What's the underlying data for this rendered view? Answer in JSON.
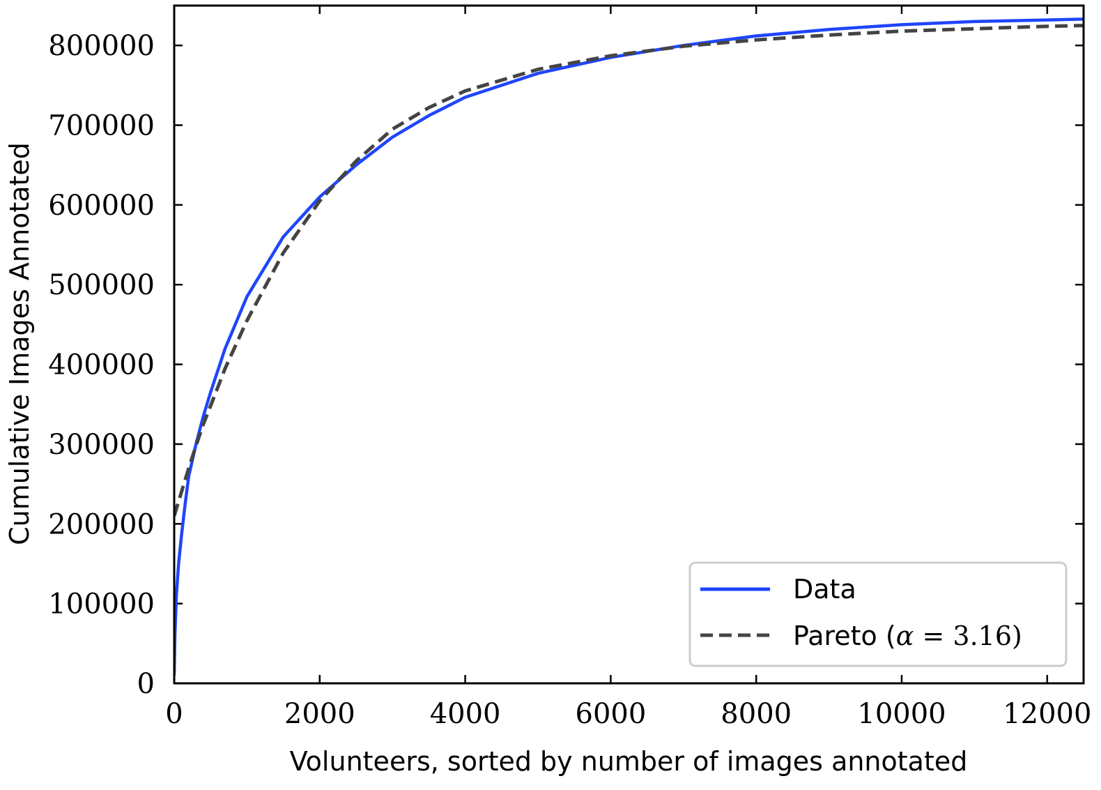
{
  "chart_data": {
    "type": "line",
    "title": "",
    "xlabel": "Volunteers, sorted by number of images annotated",
    "ylabel": "Cumulative Images Annotated",
    "xlim": [
      0,
      12500
    ],
    "ylim": [
      0,
      850000
    ],
    "x_ticks": [
      0,
      2000,
      4000,
      6000,
      8000,
      10000,
      12000
    ],
    "x_tick_labels": [
      "0",
      "2000",
      "4000",
      "6000",
      "8000",
      "10000",
      "12000"
    ],
    "y_ticks": [
      0,
      100000,
      200000,
      300000,
      400000,
      500000,
      600000,
      700000,
      800000
    ],
    "y_tick_labels": [
      "0",
      "100000",
      "200000",
      "300000",
      "400000",
      "500000",
      "600000",
      "700000",
      "800000"
    ],
    "grid": false,
    "legend_position": "bottom-right",
    "series": [
      {
        "name": "Data",
        "color": "#1f45fc",
        "style": "solid",
        "x": [
          0,
          10,
          30,
          60,
          100,
          150,
          200,
          300,
          400,
          500,
          700,
          1000,
          1500,
          2000,
          2500,
          3000,
          3500,
          4000,
          5000,
          6000,
          7000,
          8000,
          9000,
          10000,
          11000,
          12000,
          12500
        ],
        "y": [
          10000,
          60000,
          110000,
          150000,
          185000,
          225000,
          260000,
          300000,
          335000,
          365000,
          420000,
          485000,
          560000,
          610000,
          650000,
          685000,
          712000,
          735000,
          765000,
          785000,
          800000,
          812000,
          820000,
          826000,
          830000,
          832000,
          833000
        ]
      },
      {
        "name": "Pareto (α = 3.16)",
        "color": "#444444",
        "style": "dashed",
        "x": [
          0,
          50,
          100,
          200,
          300,
          400,
          500,
          700,
          1000,
          1500,
          2000,
          2500,
          3000,
          3500,
          4000,
          5000,
          6000,
          7000,
          8000,
          9000,
          10000,
          11000,
          12000,
          12500
        ],
        "y": [
          210000,
          225000,
          240000,
          270000,
          298000,
          325000,
          348000,
          395000,
          455000,
          540000,
          605000,
          655000,
          695000,
          722000,
          743000,
          770000,
          787000,
          799000,
          807000,
          813000,
          818000,
          821000,
          824000,
          825000
        ]
      }
    ]
  },
  "legend": {
    "data_label": "Data",
    "pareto_prefix": "Pareto (",
    "pareto_alpha": "α",
    "pareto_eq": " = 3.16)"
  }
}
